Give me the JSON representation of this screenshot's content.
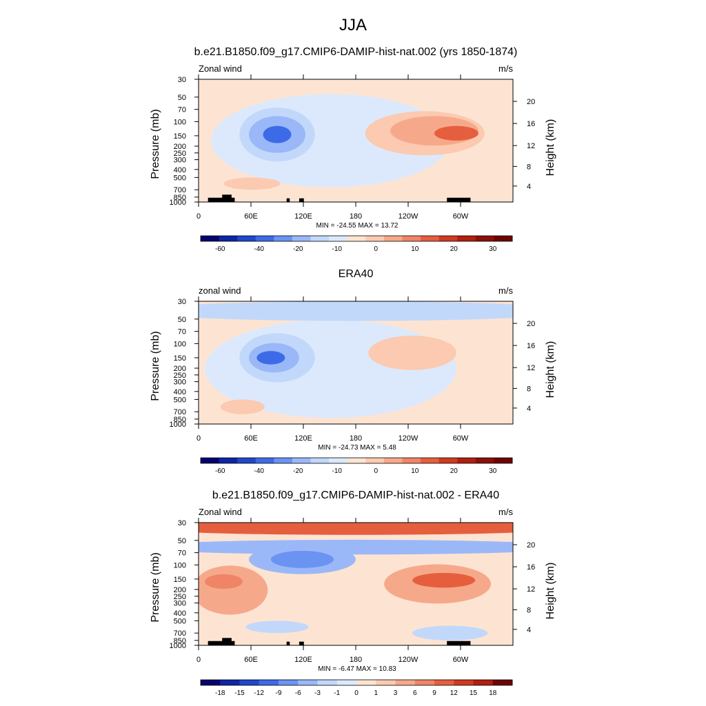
{
  "figure": {
    "title": "JJA"
  },
  "chart_data": [
    {
      "type": "heatmap",
      "title": "b.e21.B1850.f09_g17.CMIP6-DAMIP-hist-nat.002 (yrs 1850-1874)",
      "variable_label": "Zonal wind",
      "units": "m/s",
      "ylabel": "Pressure (mb)",
      "ylabel_right": "Height (km)",
      "x_ticks": [
        "0",
        "60E",
        "120E",
        "180",
        "120W",
        "60W"
      ],
      "y_ticks": [
        "30",
        "50",
        "70",
        "100",
        "150",
        "200",
        "250",
        "300",
        "400",
        "500",
        "700",
        "850",
        "1000"
      ],
      "y_ticks_right": [
        "20",
        "16",
        "12",
        "8",
        "4"
      ],
      "stats": "MIN = -24.55  MAX =  13.72",
      "colorbar_labels": [
        "-60",
        "-40",
        "-20",
        "-10",
        "0",
        "10",
        "20",
        "30"
      ],
      "colorbar_colors": [
        "#06036e",
        "#0d26a3",
        "#1f48cc",
        "#3d6be8",
        "#6b93f2",
        "#9ab8f8",
        "#c2d8fb",
        "#dce9fc",
        "#fde4d2",
        "#fbcab0",
        "#f6a98a",
        "#ef8566",
        "#e55f3e",
        "#d03a1f",
        "#b01f10",
        "#8a1008",
        "#6e0303"
      ],
      "land_blocks": true,
      "fields": [
        {
          "color": "#fde4d2",
          "cx": 0.5,
          "cy": 0.5,
          "rx": 0.8,
          "ry": 0.8
        },
        {
          "color": "#dce9fc",
          "cx": 0.42,
          "cy": 0.5,
          "rx": 0.38,
          "ry": 0.38
        },
        {
          "color": "#c2d8fb",
          "cx": 0.25,
          "cy": 0.45,
          "rx": 0.12,
          "ry": 0.22
        },
        {
          "color": "#9ab8f8",
          "cx": 0.25,
          "cy": 0.45,
          "rx": 0.09,
          "ry": 0.15
        },
        {
          "color": "#3d6be8",
          "cx": 0.25,
          "cy": 0.45,
          "rx": 0.045,
          "ry": 0.07
        },
        {
          "color": "#fbcab0",
          "cx": 0.72,
          "cy": 0.44,
          "rx": 0.19,
          "ry": 0.18
        },
        {
          "color": "#f6a98a",
          "cx": 0.75,
          "cy": 0.42,
          "rx": 0.14,
          "ry": 0.12
        },
        {
          "color": "#e55f3e",
          "cx": 0.82,
          "cy": 0.44,
          "rx": 0.07,
          "ry": 0.06
        },
        {
          "color": "#fbcab0",
          "cx": 0.17,
          "cy": 0.85,
          "rx": 0.09,
          "ry": 0.05
        }
      ]
    },
    {
      "type": "heatmap",
      "title": "ERA40",
      "variable_label": "zonal wind",
      "units": "m/s",
      "ylabel": "Pressure (mb)",
      "ylabel_right": "Height (km)",
      "x_ticks": [
        "0",
        "60E",
        "120E",
        "180",
        "120W",
        "60W"
      ],
      "y_ticks": [
        "30",
        "50",
        "70",
        "100",
        "150",
        "200",
        "250",
        "300",
        "400",
        "500",
        "700",
        "850",
        "1000"
      ],
      "y_ticks_right": [
        "20",
        "16",
        "12",
        "8",
        "4"
      ],
      "stats": "MIN = -24.73  MAX =   5.48",
      "colorbar_labels": [
        "-60",
        "-40",
        "-20",
        "-10",
        "0",
        "10",
        "20",
        "30"
      ],
      "colorbar_colors": [
        "#06036e",
        "#0d26a3",
        "#1f48cc",
        "#3d6be8",
        "#6b93f2",
        "#9ab8f8",
        "#c2d8fb",
        "#dce9fc",
        "#fde4d2",
        "#fbcab0",
        "#f6a98a",
        "#ef8566",
        "#e55f3e",
        "#d03a1f",
        "#b01f10",
        "#8a1008",
        "#6e0303"
      ],
      "land_blocks": false,
      "fields": [
        {
          "color": "#fde4d2",
          "cx": 0.5,
          "cy": 0.5,
          "rx": 0.8,
          "ry": 0.8
        },
        {
          "color": "#dce9fc",
          "cx": 0.42,
          "cy": 0.55,
          "rx": 0.4,
          "ry": 0.4
        },
        {
          "color": "#c2d8fb",
          "cx": 0.5,
          "cy": 0.08,
          "rx": 0.7,
          "ry": 0.08
        },
        {
          "color": "#c2d8fb",
          "cx": 0.25,
          "cy": 0.46,
          "rx": 0.12,
          "ry": 0.2
        },
        {
          "color": "#9ab8f8",
          "cx": 0.24,
          "cy": 0.46,
          "rx": 0.08,
          "ry": 0.12
        },
        {
          "color": "#3d6be8",
          "cx": 0.23,
          "cy": 0.46,
          "rx": 0.045,
          "ry": 0.055
        },
        {
          "color": "#fbcab0",
          "cx": 0.68,
          "cy": 0.42,
          "rx": 0.14,
          "ry": 0.14
        },
        {
          "color": "#fbcab0",
          "cx": 0.14,
          "cy": 0.86,
          "rx": 0.07,
          "ry": 0.06
        }
      ]
    },
    {
      "type": "heatmap",
      "title": "b.e21.B1850.f09_g17.CMIP6-DAMIP-hist-nat.002 - ERA40",
      "variable_label": "Zonal wind",
      "units": "m/s",
      "ylabel": "Pressure (mb)",
      "ylabel_right": "Height (km)",
      "x_ticks": [
        "0",
        "60E",
        "120E",
        "180",
        "120W",
        "60W"
      ],
      "y_ticks": [
        "30",
        "50",
        "70",
        "100",
        "150",
        "200",
        "250",
        "300",
        "400",
        "500",
        "700",
        "850",
        "1000"
      ],
      "y_ticks_right": [
        "20",
        "16",
        "12",
        "8",
        "4"
      ],
      "stats": "MIN = -6.47  MAX = 10.83",
      "colorbar_labels": [
        "-18",
        "-15",
        "-12",
        "-9",
        "-6",
        "-3",
        "-1",
        "0",
        "1",
        "3",
        "6",
        "9",
        "12",
        "15",
        "18"
      ],
      "colorbar_colors": [
        "#06036e",
        "#0d26a3",
        "#1f48cc",
        "#3d6be8",
        "#6b93f2",
        "#9ab8f8",
        "#c2d8fb",
        "#dce9fc",
        "#fde4d2",
        "#fbcab0",
        "#f6a98a",
        "#ef8566",
        "#e55f3e",
        "#d03a1f",
        "#b01f10",
        "#6e0303"
      ],
      "land_blocks": true,
      "fields": [
        {
          "color": "#fde4d2",
          "cx": 0.5,
          "cy": 0.5,
          "rx": 0.8,
          "ry": 0.8
        },
        {
          "color": "#e55f3e",
          "cx": 0.5,
          "cy": 0.03,
          "rx": 0.75,
          "ry": 0.07
        },
        {
          "color": "#9ab8f8",
          "cx": 0.5,
          "cy": 0.2,
          "rx": 0.7,
          "ry": 0.06
        },
        {
          "color": "#9ab8f8",
          "cx": 0.33,
          "cy": 0.3,
          "rx": 0.17,
          "ry": 0.12
        },
        {
          "color": "#6b93f2",
          "cx": 0.33,
          "cy": 0.3,
          "rx": 0.1,
          "ry": 0.07
        },
        {
          "color": "#f6a98a",
          "cx": 0.1,
          "cy": 0.55,
          "rx": 0.12,
          "ry": 0.2
        },
        {
          "color": "#ef8566",
          "cx": 0.08,
          "cy": 0.48,
          "rx": 0.06,
          "ry": 0.06
        },
        {
          "color": "#f6a98a",
          "cx": 0.76,
          "cy": 0.5,
          "rx": 0.17,
          "ry": 0.16
        },
        {
          "color": "#e55f3e",
          "cx": 0.78,
          "cy": 0.47,
          "rx": 0.1,
          "ry": 0.06
        },
        {
          "color": "#c2d8fb",
          "cx": 0.8,
          "cy": 0.9,
          "rx": 0.12,
          "ry": 0.06
        },
        {
          "color": "#c2d8fb",
          "cx": 0.25,
          "cy": 0.85,
          "rx": 0.1,
          "ry": 0.05
        }
      ]
    }
  ]
}
